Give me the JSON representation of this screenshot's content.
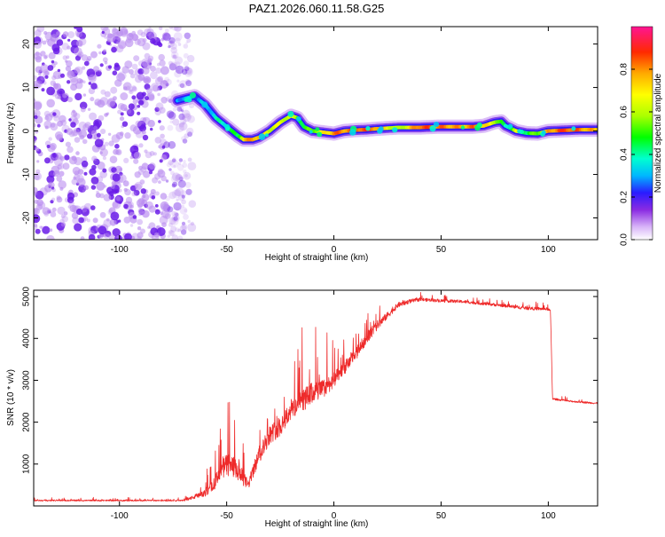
{
  "title": "PAZ1.2026.060.11.58.G25",
  "colors": {
    "snr_line": "#ee2a2a",
    "spectro_bg_dots": "#b98cf0",
    "spectro_band_low": "#6a1be8",
    "axis": "#000000"
  },
  "chart_data": [
    {
      "id": "spectrogram",
      "type": "heatmap",
      "title": "PAZ1.2026.060.11.58.G25",
      "xlabel": "Height of straight line (km)",
      "ylabel": "Frequency (Hz)",
      "xlim": [
        -140,
        123
      ],
      "ylim": [
        -25,
        24
      ],
      "xticks": [
        -100,
        -50,
        0,
        50,
        100
      ],
      "xtick_labels": [
        "-100",
        "-50",
        "0",
        "50",
        "100"
      ],
      "yticks": [
        -20,
        -10,
        0,
        10,
        20
      ],
      "ytick_labels": [
        "-20",
        "-10",
        "0",
        "10",
        "20"
      ],
      "noise_region_x": [
        -140,
        -70
      ],
      "ridge": {
        "x": [
          -73,
          -65,
          -60,
          -55,
          -50,
          -45,
          -42,
          -38,
          -35,
          -30,
          -25,
          -20,
          -17,
          -14,
          -10,
          -5,
          0,
          5,
          10,
          15,
          20,
          30,
          40,
          50,
          60,
          65,
          70,
          75,
          78,
          80,
          85,
          90,
          95,
          100,
          105,
          110,
          115,
          120,
          123
        ],
        "y": [
          7,
          8,
          6,
          3,
          1,
          -1,
          -2,
          -2,
          -1.5,
          0,
          2,
          3.5,
          3,
          1,
          0,
          -0.3,
          -0.6,
          0,
          0.2,
          0.3,
          0.5,
          0.8,
          0.8,
          1,
          1,
          1,
          1.2,
          2,
          2.2,
          1.2,
          0,
          -0.5,
          -0.6,
          0,
          0.1,
          0.2,
          0.3,
          0.3,
          0.3
        ],
        "amplitude": [
          0.35,
          0.3,
          0.35,
          0.4,
          0.45,
          0.5,
          0.8,
          0.9,
          0.85,
          0.7,
          0.7,
          0.7,
          0.6,
          0.5,
          0.6,
          0.75,
          0.9,
          0.9,
          0.95,
          0.95,
          0.9,
          0.6,
          0.95,
          0.9,
          0.85,
          0.9,
          0.8,
          0.7,
          0.5,
          0.4,
          0.7,
          0.5,
          0.6,
          0.85,
          0.95,
          0.95,
          0.9,
          0.85,
          0.8
        ]
      },
      "colorbar": {
        "label": "Normalized spectral amplitude",
        "range": [
          0,
          1
        ],
        "ticks": [
          0.0,
          0.2,
          0.4,
          0.6,
          0.8
        ],
        "tick_labels": [
          "0.0",
          "0.2",
          "0.4",
          "0.6",
          "0.8"
        ]
      }
    },
    {
      "id": "snr",
      "type": "line",
      "title": "",
      "xlabel": "Height of straight line (km)",
      "ylabel": "SNR (10 * v/v)",
      "xlim": [
        -140,
        123
      ],
      "ylim": [
        0,
        5150
      ],
      "xticks": [
        -100,
        -50,
        0,
        50,
        100
      ],
      "xtick_labels": [
        "-100",
        "-50",
        "0",
        "50",
        "100"
      ],
      "yticks": [
        1000,
        2000,
        3000,
        4000,
        5000
      ],
      "ytick_labels": [
        "1000",
        "2000",
        "3000",
        "4000",
        "5000"
      ],
      "series": [
        {
          "name": "SNR",
          "envelope_x": [
            -140,
            -70,
            -60,
            -55,
            -50,
            -45,
            -40,
            -35,
            -30,
            -25,
            -20,
            -15,
            -10,
            -5,
            0,
            5,
            10,
            15,
            20,
            25,
            30,
            35,
            40,
            50,
            60,
            70,
            80,
            90,
            100,
            101,
            102,
            103,
            110,
            123
          ],
          "envelope_y": [
            130,
            130,
            300,
            600,
            1000,
            850,
            500,
            1200,
            1700,
            1900,
            2300,
            2500,
            2700,
            2800,
            3000,
            3300,
            3600,
            4000,
            4300,
            4550,
            4800,
            4880,
            4930,
            4900,
            4880,
            4830,
            4780,
            4720,
            4700,
            4650,
            2550,
            2550,
            2500,
            2450
          ],
          "noise_amp": [
            40,
            40,
            200,
            450,
            700,
            650,
            300,
            500,
            550,
            600,
            650,
            700,
            650,
            550,
            450,
            400,
            400,
            350,
            300,
            200,
            150,
            120,
            100,
            90,
            90,
            90,
            90,
            90,
            90,
            60,
            70,
            60,
            50,
            50
          ]
        }
      ]
    }
  ]
}
